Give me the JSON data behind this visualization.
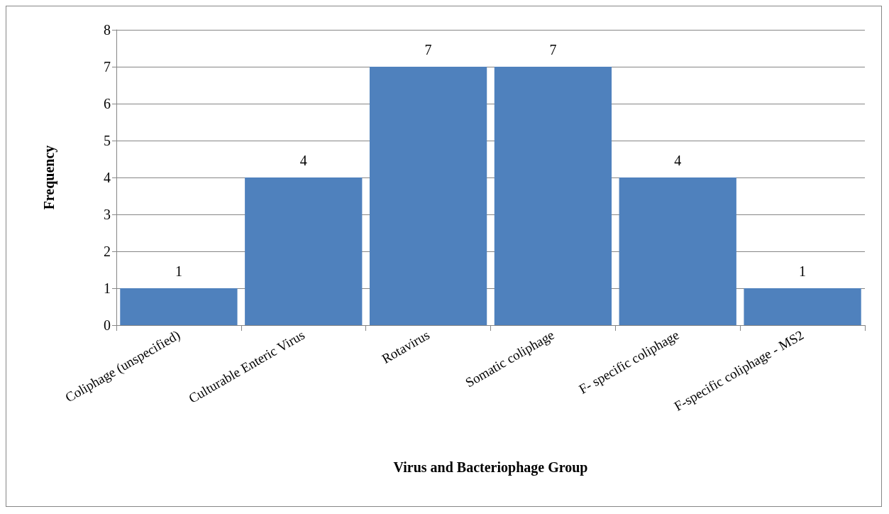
{
  "chart_data": {
    "type": "bar",
    "xlabel": "Virus and Bacteriophage Group",
    "ylabel": "Frequency",
    "categories": [
      "Coliphage (unspecified)",
      "Culturable Enteric Virus",
      "Rotavirus",
      "Somatic coliphage",
      "F- specific coliphage",
      "F-specific coliphage - MS2"
    ],
    "values": [
      1,
      4,
      7,
      7,
      4,
      1
    ],
    "color": "#4f81bd",
    "data_labels": true,
    "ylim": [
      0,
      8
    ],
    "yticks": [
      0,
      1,
      2,
      3,
      4,
      5,
      6,
      7,
      8
    ],
    "grid": "y"
  }
}
